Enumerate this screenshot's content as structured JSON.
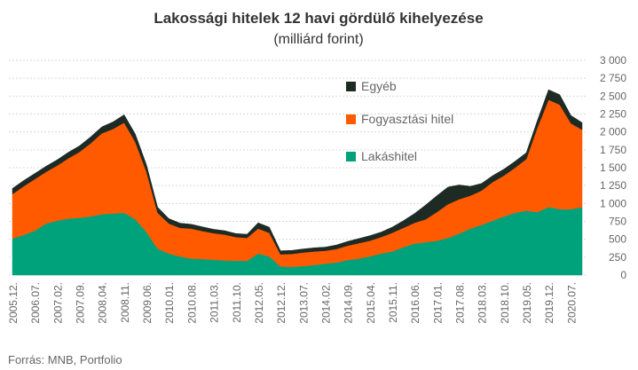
{
  "chart_data": {
    "type": "area",
    "stacked": true,
    "title": "Lakossági hitelek 12 havi gördülő kihelyezése",
    "subtitle": "(milliárd forint)",
    "source": "Forrás: MNB, Portfolio",
    "y_ticks": [
      "0",
      "250",
      "500",
      "750",
      "1 000",
      "1 250",
      "1 500",
      "1 750",
      "2 000",
      "2 250",
      "2 500",
      "2 750",
      "3 000"
    ],
    "ylim": [
      0,
      3000
    ],
    "y_axis_position": "right",
    "grid": true,
    "legend_placement": "top-center",
    "x_ticks": [
      "2005.12.",
      "2006.07.",
      "2007.02.",
      "2007.09.",
      "2008.04.",
      "2008.11.",
      "2009.06.",
      "2010.01.",
      "2010.08.",
      "2011.03.",
      "2011.10.",
      "2012.05.",
      "2012.12.",
      "2013.07.",
      "2014.02.",
      "2014.09.",
      "2015.04.",
      "2015.11.",
      "2016.06.",
      "2017.01.",
      "2017.08.",
      "2018.03.",
      "2018.10.",
      "2019.05.",
      "2019.12.",
      "2020.07."
    ],
    "x": [
      "2005.12.",
      "2006.03.",
      "2006.07.",
      "2006.11.",
      "2007.02.",
      "2007.06.",
      "2007.09.",
      "2008.01.",
      "2008.04.",
      "2008.08.",
      "2008.11.",
      "2009.03.",
      "2009.06.",
      "2009.10.",
      "2010.01.",
      "2010.05.",
      "2010.08.",
      "2010.12.",
      "2011.03.",
      "2011.07.",
      "2011.10.",
      "2012.02.",
      "2012.05.",
      "2012.09.",
      "2012.12.",
      "2013.04.",
      "2013.07.",
      "2013.11.",
      "2014.02.",
      "2014.06.",
      "2014.09.",
      "2015.01.",
      "2015.04.",
      "2015.08.",
      "2015.11.",
      "2016.03.",
      "2016.06.",
      "2016.10.",
      "2017.01.",
      "2017.05.",
      "2017.08.",
      "2017.12.",
      "2018.03.",
      "2018.07.",
      "2018.10.",
      "2019.02.",
      "2019.05.",
      "2019.09.",
      "2019.12.",
      "2020.04.",
      "2020.07.",
      "2020.10."
    ],
    "series": [
      {
        "name": "Lakáshitel",
        "color": "#00a27c",
        "values": [
          510,
          560,
          620,
          720,
          760,
          790,
          800,
          820,
          850,
          860,
          870,
          780,
          600,
          370,
          300,
          260,
          230,
          225,
          215,
          205,
          200,
          200,
          300,
          260,
          120,
          115,
          125,
          140,
          160,
          175,
          210,
          230,
          260,
          300,
          330,
          390,
          440,
          460,
          480,
          520,
          580,
          650,
          700,
          760,
          820,
          870,
          900,
          880,
          950,
          920,
          920,
          950
        ]
      },
      {
        "name": "Fogyasztási hitel",
        "color": "#ff5a00",
        "values": [
          620,
          680,
          720,
          720,
          770,
          840,
          920,
          1020,
          1130,
          1180,
          1260,
          1080,
          840,
          500,
          420,
          400,
          420,
          390,
          370,
          360,
          330,
          320,
          350,
          330,
          170,
          180,
          190,
          190,
          180,
          190,
          200,
          215,
          220,
          230,
          260,
          270,
          290,
          320,
          400,
          470,
          480,
          460,
          480,
          540,
          570,
          630,
          720,
          1180,
          1500,
          1460,
          1200,
          1080
        ]
      },
      {
        "name": "Egyéb",
        "color": "#1e2b24",
        "values": [
          80,
          80,
          80,
          80,
          80,
          85,
          85,
          90,
          90,
          100,
          110,
          110,
          100,
          80,
          70,
          65,
          60,
          60,
          55,
          55,
          50,
          50,
          80,
          80,
          50,
          50,
          50,
          50,
          50,
          55,
          60,
          65,
          70,
          70,
          80,
          100,
          130,
          200,
          230,
          240,
          200,
          130,
          100,
          90,
          90,
          90,
          90,
          100,
          140,
          140,
          110,
          100
        ]
      }
    ],
    "legend": [
      {
        "name": "Egyéb",
        "color": "#1e2b24"
      },
      {
        "name": "Fogyasztási hitel",
        "color": "#ff5a00"
      },
      {
        "name": "Lakáshitel",
        "color": "#00a27c"
      }
    ]
  }
}
